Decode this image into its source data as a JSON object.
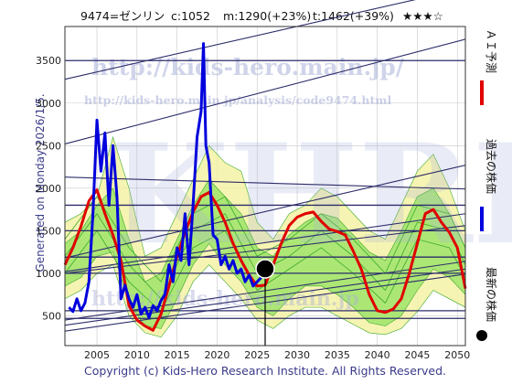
{
  "header": {
    "code_name": "9474=ゼンリン",
    "current": "c:1052",
    "mid": "m:1290(+23%)",
    "target": "t:1462(+39%)",
    "rating": "★★★☆"
  },
  "side_label": "Generated on Monday 2026/1/5.",
  "copyright": "Copyright (c) Kids-Hero Research Institute. All Rights Reserved.",
  "watermarks": {
    "url1": "http://kids-hero.main.jp/",
    "url2": "http://kids-hero.main.jp/analysis/code9474.html",
    "url3": "http://kids-hero.main.jp",
    "big": "KHRI"
  },
  "legend": [
    {
      "label": "ＡＩ予測",
      "color": "#e00000",
      "kind": "line"
    },
    {
      "label": "過去の株価",
      "color": "#0000dd",
      "kind": "line"
    },
    {
      "label": "最新の株価",
      "color": "#000000",
      "kind": "dot"
    }
  ],
  "colors": {
    "ai": "#e00000",
    "past": "#0000dd",
    "band_outer": "#f4f2a4",
    "band_inner": "#9fe46a",
    "band_line": "#3aaa2a",
    "trend": "#2d2d6b",
    "grid": "#c8c8c8"
  },
  "chart_data": {
    "type": "line",
    "title": "",
    "xlabel": "",
    "ylabel": "",
    "xlim": [
      2001,
      2051
    ],
    "ylim": [
      150,
      3900
    ],
    "xticks": [
      2005,
      2010,
      2015,
      2020,
      2025,
      2030,
      2035,
      2040,
      2045,
      2050
    ],
    "yticks": [
      500,
      1000,
      1500,
      2000,
      2500,
      3000,
      3500
    ],
    "latest": {
      "x": 2026.0,
      "y": 1052
    },
    "hlines": [
      470,
      560,
      1000,
      1190,
      1500,
      1800,
      3500
    ],
    "trendlines": [
      {
        "x1": 2001,
        "y1": 3280,
        "x2": 2051,
        "y2": 4350
      },
      {
        "x1": 2001,
        "y1": 2520,
        "x2": 2051,
        "y2": 3750
      },
      {
        "x1": 2001,
        "y1": 2130,
        "x2": 2051,
        "y2": 1990
      },
      {
        "x1": 2001,
        "y1": 1180,
        "x2": 2051,
        "y2": 2270
      },
      {
        "x1": 2001,
        "y1": 1020,
        "x2": 2051,
        "y2": 1700
      },
      {
        "x1": 2001,
        "y1": 1000,
        "x2": 2051,
        "y2": 1560
      },
      {
        "x1": 2001,
        "y1": 450,
        "x2": 2051,
        "y2": 1140
      },
      {
        "x1": 2001,
        "y1": 390,
        "x2": 2051,
        "y2": 1050
      },
      {
        "x1": 2001,
        "y1": 320,
        "x2": 2051,
        "y2": 990
      }
    ],
    "series": [
      {
        "name": "ＡＩ予測",
        "color": "#e00000",
        "x": [
          2001,
          2002,
          2003,
          2004,
          2005,
          2006,
          2007,
          2008,
          2009,
          2010,
          2011,
          2012,
          2013,
          2014,
          2015,
          2016,
          2017,
          2018,
          2019,
          2020,
          2021,
          2022,
          2023,
          2024,
          2025,
          2026,
          2027,
          2028,
          2029,
          2030,
          2031,
          2032,
          2033,
          2034,
          2035,
          2036,
          2037,
          2038,
          2039,
          2040,
          2041,
          2042,
          2043,
          2044,
          2045,
          2046,
          2047,
          2048,
          2049,
          2050,
          2051
        ],
        "values": [
          1100,
          1300,
          1550,
          1850,
          1980,
          1700,
          1450,
          1150,
          620,
          450,
          380,
          330,
          520,
          850,
          1200,
          1480,
          1720,
          1900,
          1950,
          1800,
          1600,
          1350,
          1150,
          980,
          850,
          860,
          1100,
          1350,
          1560,
          1660,
          1700,
          1720,
          1610,
          1520,
          1490,
          1450,
          1260,
          1050,
          750,
          560,
          540,
          580,
          700,
          1000,
          1350,
          1700,
          1750,
          1600,
          1480,
          1300,
          820
        ]
      },
      {
        "name": "過去の株価",
        "color": "#0000dd",
        "x": [
          2001.5,
          2002,
          2002.5,
          2003,
          2003.5,
          2004,
          2004.5,
          2005,
          2005.5,
          2006,
          2006.5,
          2007,
          2007.5,
          2008,
          2008.5,
          2009,
          2009.5,
          2010,
          2010.5,
          2011,
          2011.5,
          2012,
          2012.5,
          2013,
          2013.5,
          2014,
          2014.5,
          2015,
          2015.5,
          2016,
          2016.5,
          2017,
          2017.5,
          2018,
          2018.3,
          2018.6,
          2019,
          2019.5,
          2020,
          2020.5,
          2021,
          2021.5,
          2022,
          2022.5,
          2023,
          2023.5,
          2024,
          2024.5,
          2025,
          2025.5,
          2026
        ],
        "values": [
          600,
          550,
          700,
          560,
          650,
          900,
          1700,
          2800,
          2200,
          2650,
          1800,
          2500,
          1900,
          700,
          860,
          700,
          600,
          750,
          520,
          600,
          480,
          620,
          560,
          680,
          750,
          1100,
          900,
          1300,
          1150,
          1700,
          1100,
          1800,
          2600,
          2900,
          3700,
          2500,
          2300,
          1450,
          1400,
          1100,
          1200,
          1050,
          1150,
          1000,
          1050,
          900,
          980,
          850,
          900,
          950,
          1052
        ]
      }
    ],
    "bands": [
      {
        "name": "outer",
        "x": [
          2001,
          2003,
          2005,
          2007,
          2009,
          2011,
          2013,
          2015,
          2017,
          2019,
          2021,
          2023,
          2025,
          2027,
          2029,
          2031,
          2033,
          2035,
          2037,
          2039,
          2041,
          2043,
          2045,
          2047,
          2049,
          2051
        ],
        "upper": [
          1600,
          1700,
          1900,
          2600,
          2000,
          1200,
          1300,
          1700,
          2100,
          2500,
          2300,
          2200,
          1600,
          1400,
          1700,
          1800,
          2000,
          1900,
          1700,
          1500,
          1400,
          1800,
          2200,
          2400,
          2000,
          1500
        ],
        "lower": [
          700,
          800,
          1000,
          1100,
          500,
          300,
          250,
          500,
          900,
          1100,
          900,
          700,
          450,
          350,
          500,
          600,
          600,
          500,
          400,
          300,
          280,
          350,
          550,
          800,
          700,
          600
        ]
      },
      {
        "name": "inner",
        "x": [
          2001,
          2003,
          2005,
          2007,
          2009,
          2011,
          2013,
          2015,
          2017,
          2019,
          2021,
          2023,
          2025,
          2027,
          2029,
          2031,
          2033,
          2035,
          2037,
          2039,
          2041,
          2043,
          2045,
          2047,
          2049,
          2051
        ],
        "upper": [
          1350,
          1500,
          1800,
          2000,
          1400,
          900,
          1000,
          1400,
          1800,
          2100,
          1900,
          1700,
          1300,
          1200,
          1450,
          1600,
          1700,
          1650,
          1450,
          1250,
          1150,
          1500,
          1900,
          2000,
          1700,
          1300
        ],
        "lower": [
          850,
          950,
          1200,
          1250,
          650,
          380,
          350,
          700,
          1100,
          1350,
          1100,
          900,
          600,
          500,
          700,
          850,
          850,
          750,
          600,
          420,
          380,
          500,
          800,
          1050,
          950,
          750
        ]
      }
    ],
    "band_lines": [
      {
        "x": [
          2001,
          2005,
          2009,
          2013,
          2017,
          2021,
          2025,
          2029,
          2033,
          2037,
          2041,
          2045,
          2049,
          2051
        ],
        "values": [
          1200,
          1700,
          1100,
          700,
          1500,
          1700,
          1000,
          1200,
          1500,
          1200,
          800,
          1600,
          1500,
          1100
        ]
      },
      {
        "x": [
          2001,
          2005,
          2009,
          2013,
          2017,
          2021,
          2025,
          2029,
          2033,
          2037,
          2041,
          2045,
          2049,
          2051
        ],
        "values": [
          1000,
          1500,
          900,
          550,
          1300,
          1500,
          800,
          1050,
          1300,
          1000,
          650,
          1400,
          1300,
          950
        ]
      },
      {
        "x": [
          2001,
          2005,
          2009,
          2013,
          2017,
          2021,
          2025,
          2029,
          2033,
          2037,
          2041,
          2045,
          2049,
          2051
        ],
        "values": [
          1400,
          1900,
          1300,
          900,
          1700,
          1900,
          1200,
          1400,
          1700,
          1400,
          1000,
          1800,
          1700,
          1300
        ]
      }
    ]
  }
}
